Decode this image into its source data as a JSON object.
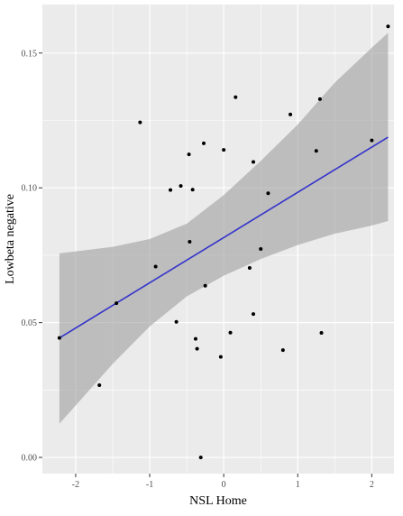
{
  "chart_data": {
    "type": "scatter",
    "xlabel": "NSL  Home",
    "ylabel": "Lowbeta  negative",
    "xlim": [
      -2.45,
      2.3
    ],
    "ylim": [
      -0.006,
      0.168
    ],
    "xticks": [
      -2,
      -1,
      0,
      1,
      2
    ],
    "yticks": [
      0.0,
      0.05,
      0.1,
      0.15
    ],
    "ytick_labels": [
      "0.00",
      "0.05",
      "0.10",
      "0.15"
    ],
    "grid": true,
    "points": [
      {
        "x": -2.22,
        "y": 0.0443
      },
      {
        "x": -1.68,
        "y": 0.0268
      },
      {
        "x": -1.45,
        "y": 0.0572
      },
      {
        "x": -1.13,
        "y": 0.1243
      },
      {
        "x": -0.92,
        "y": 0.0708
      },
      {
        "x": -0.72,
        "y": 0.0992
      },
      {
        "x": -0.64,
        "y": 0.0503
      },
      {
        "x": -0.58,
        "y": 0.1007
      },
      {
        "x": -0.47,
        "y": 0.1124
      },
      {
        "x": -0.46,
        "y": 0.08
      },
      {
        "x": -0.42,
        "y": 0.0993
      },
      {
        "x": -0.38,
        "y": 0.044
      },
      {
        "x": -0.36,
        "y": 0.0403
      },
      {
        "x": -0.31,
        "y": 0.0
      },
      {
        "x": -0.27,
        "y": 0.1165
      },
      {
        "x": -0.25,
        "y": 0.0637
      },
      {
        "x": -0.04,
        "y": 0.0373
      },
      {
        "x": 0.0,
        "y": 0.1141
      },
      {
        "x": 0.09,
        "y": 0.0463
      },
      {
        "x": 0.16,
        "y": 0.1336
      },
      {
        "x": 0.35,
        "y": 0.0703
      },
      {
        "x": 0.4,
        "y": 0.1096
      },
      {
        "x": 0.4,
        "y": 0.0532
      },
      {
        "x": 0.5,
        "y": 0.0773
      },
      {
        "x": 0.6,
        "y": 0.098
      },
      {
        "x": 0.8,
        "y": 0.0398
      },
      {
        "x": 0.9,
        "y": 0.1272
      },
      {
        "x": 1.25,
        "y": 0.1137
      },
      {
        "x": 1.3,
        "y": 0.1329
      },
      {
        "x": 1.32,
        "y": 0.0462
      },
      {
        "x": 2.0,
        "y": 0.1176
      },
      {
        "x": 2.22,
        "y": 0.1599
      }
    ],
    "regression": {
      "method": "linear",
      "line": [
        {
          "x": -2.22,
          "y": 0.0443
        },
        {
          "x": 2.22,
          "y": 0.1188
        }
      ],
      "ribbon": [
        {
          "x": -2.22,
          "lo": 0.0125,
          "hi": 0.0757
        },
        {
          "x": -1.5,
          "lo": 0.0347,
          "hi": 0.0781
        },
        {
          "x": -1.0,
          "lo": 0.0486,
          "hi": 0.081
        },
        {
          "x": -0.5,
          "lo": 0.0597,
          "hi": 0.0867
        },
        {
          "x": 0.0,
          "lo": 0.0674,
          "hi": 0.0973
        },
        {
          "x": 0.5,
          "lo": 0.0736,
          "hi": 0.11
        },
        {
          "x": 1.0,
          "lo": 0.0788,
          "hi": 0.1235
        },
        {
          "x": 1.5,
          "lo": 0.083,
          "hi": 0.139
        },
        {
          "x": 2.0,
          "lo": 0.086,
          "hi": 0.152
        },
        {
          "x": 2.22,
          "lo": 0.0877,
          "hi": 0.1575
        }
      ]
    },
    "colors": {
      "panel": "#ebebeb",
      "grid": "#ffffff",
      "line": "#3333cc",
      "ribbon": "#9e9e9e",
      "point": "#000000"
    }
  }
}
